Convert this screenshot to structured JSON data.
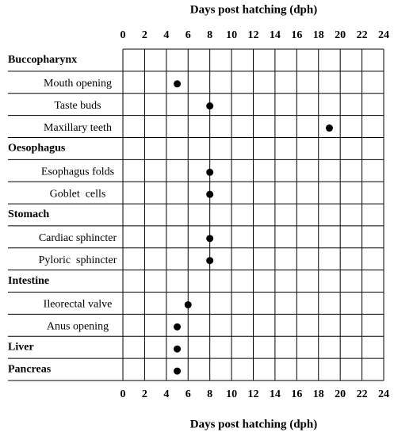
{
  "chart_data": {
    "type": "dot",
    "xlabel": "Days post hatching (dph)",
    "xlim": [
      0,
      24
    ],
    "xticks": [
      0,
      2,
      4,
      6,
      8,
      10,
      12,
      14,
      16,
      18,
      20,
      22,
      24
    ],
    "grid": true,
    "color": "#000000",
    "rows": [
      {
        "label": "Buccopharynx",
        "header": true,
        "value": null
      },
      {
        "label": "Mouth opening",
        "header": false,
        "value": 5
      },
      {
        "label": "Taste buds",
        "header": false,
        "value": 8
      },
      {
        "label": "Maxillary teeth",
        "header": false,
        "value": 19
      },
      {
        "label": "Oesophagus",
        "header": true,
        "value": null
      },
      {
        "label": "Esophagus folds",
        "header": false,
        "value": 8
      },
      {
        "label": "Goblet  cells",
        "header": false,
        "value": 8
      },
      {
        "label": "Stomach",
        "header": true,
        "value": null
      },
      {
        "label": "Cardiac sphincter",
        "header": false,
        "value": 8
      },
      {
        "label": "Pyloric  sphincter",
        "header": false,
        "value": 8
      },
      {
        "label": "Intestine",
        "header": true,
        "value": null
      },
      {
        "label": "Ileorectal valve",
        "header": false,
        "value": 6
      },
      {
        "label": "Anus opening",
        "header": false,
        "value": 5
      },
      {
        "label": "Liver",
        "header": true,
        "value": 5
      },
      {
        "label": "Pancreas",
        "header": true,
        "value": 5
      }
    ]
  }
}
